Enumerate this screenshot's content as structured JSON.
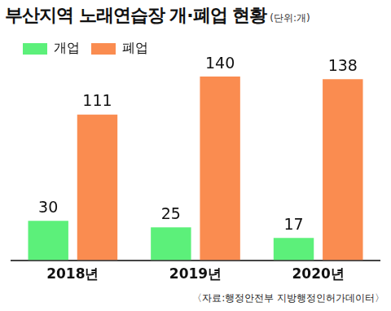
{
  "chart_data": {
    "type": "bar",
    "title": "부산지역 노래연습장 개·폐업 현황",
    "subtitle": "(단위:개)",
    "categories": [
      "2018년",
      "2019년",
      "2020년"
    ],
    "series": [
      {
        "name": "개업",
        "color": "#5cf07a",
        "values": [
          30,
          25,
          17
        ]
      },
      {
        "name": "폐업",
        "color": "#fa8c50",
        "values": [
          111,
          140,
          138
        ]
      }
    ],
    "ylim": [
      0,
      150
    ],
    "grid": false,
    "legend": "top-left",
    "data_labels": true,
    "tick_labels": "x",
    "source": "〈자료:행정안전부 지방행정인허가데이터〉"
  }
}
